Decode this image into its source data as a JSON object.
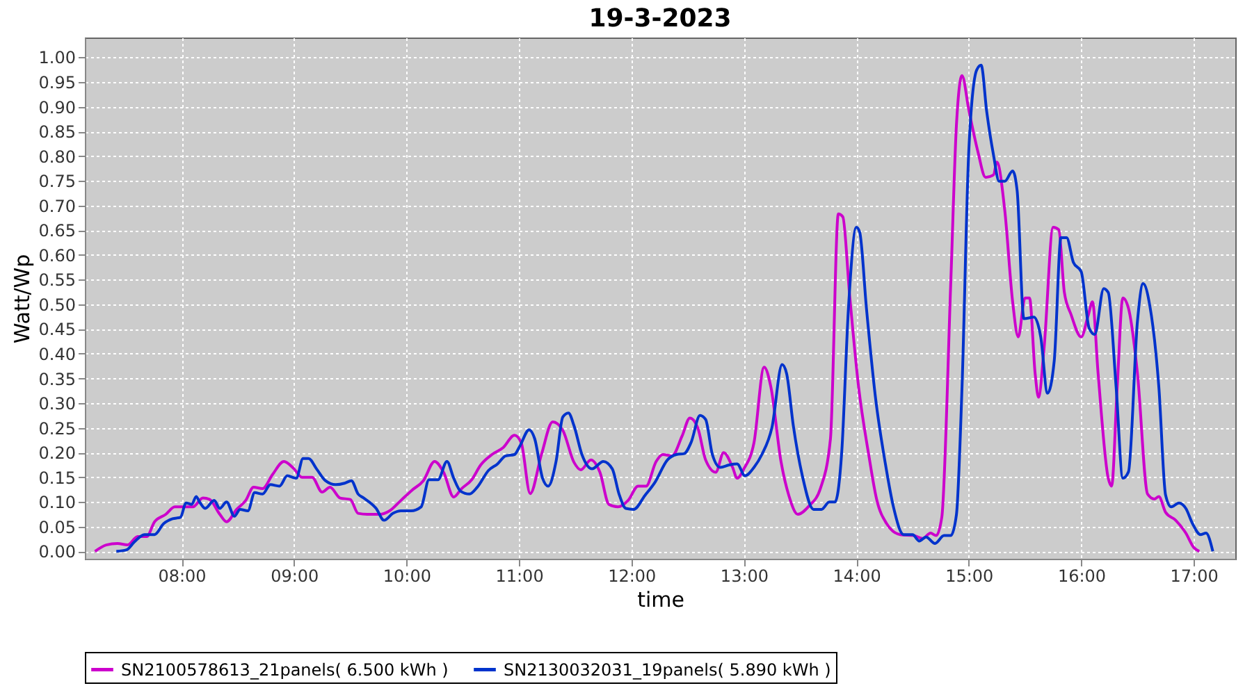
{
  "chart_data": {
    "type": "line",
    "title": "19-3-2023",
    "xlabel": "time",
    "ylabel": "Watt/Wp",
    "xlim": [
      7.14,
      17.37
    ],
    "xticks": [
      {
        "value": 8,
        "label": "08:00"
      },
      {
        "value": 9,
        "label": "09:00"
      },
      {
        "value": 10,
        "label": "10:00"
      },
      {
        "value": 11,
        "label": "11:00"
      },
      {
        "value": 12,
        "label": "12:00"
      },
      {
        "value": 13,
        "label": "13:00"
      },
      {
        "value": 14,
        "label": "14:00"
      },
      {
        "value": 15,
        "label": "15:00"
      },
      {
        "value": 16,
        "label": "16:00"
      },
      {
        "value": 17,
        "label": "17:00"
      }
    ],
    "ylim": [
      -0.015,
      1.04
    ],
    "yticks": [
      {
        "value": 0,
        "label": "0.00"
      },
      {
        "value": 0.05,
        "label": "0.05"
      },
      {
        "value": 0.1,
        "label": "0.10"
      },
      {
        "value": 0.15,
        "label": "0.15"
      },
      {
        "value": 0.2,
        "label": "0.20"
      },
      {
        "value": 0.25,
        "label": "0.25"
      },
      {
        "value": 0.3,
        "label": "0.30"
      },
      {
        "value": 0.35,
        "label": "0.35"
      },
      {
        "value": 0.4,
        "label": "0.40"
      },
      {
        "value": 0.45,
        "label": "0.45"
      },
      {
        "value": 0.5,
        "label": "0.50"
      },
      {
        "value": 0.55,
        "label": "0.55"
      },
      {
        "value": 0.6,
        "label": "0.60"
      },
      {
        "value": 0.65,
        "label": "0.65"
      },
      {
        "value": 0.7,
        "label": "0.70"
      },
      {
        "value": 0.75,
        "label": "0.75"
      },
      {
        "value": 0.8,
        "label": "0.80"
      },
      {
        "value": 0.85,
        "label": "0.85"
      },
      {
        "value": 0.9,
        "label": "0.90"
      },
      {
        "value": 0.95,
        "label": "0.95"
      },
      {
        "value": 1,
        "label": "1.00"
      }
    ],
    "grid": true,
    "legend": "bottom",
    "line_style": "dashed",
    "series": [
      {
        "name": "SN2100578613_21panels( 6.500 kWh )",
        "color": "#cc00cc",
        "line_style": "solid",
        "x": [
          7.23,
          7.33,
          7.43,
          7.52,
          7.61,
          7.69,
          7.76,
          7.86,
          7.94,
          8.04,
          8.1,
          8.19,
          8.25,
          8.34,
          8.4,
          8.49,
          8.57,
          8.64,
          8.72,
          8.81,
          8.91,
          9.0,
          9.07,
          9.16,
          9.25,
          9.32,
          9.41,
          9.5,
          9.57,
          9.65,
          9.76,
          9.85,
          9.95,
          10.05,
          10.15,
          10.25,
          10.33,
          10.42,
          10.49,
          10.58,
          10.66,
          10.76,
          10.86,
          10.96,
          11.02,
          11.1,
          11.2,
          11.3,
          11.39,
          11.49,
          11.55,
          11.64,
          11.72,
          11.8,
          11.88,
          11.97,
          12.06,
          12.13,
          12.22,
          12.28,
          12.36,
          12.45,
          12.52,
          12.59,
          12.66,
          12.75,
          12.82,
          12.9,
          12.94,
          13.0,
          13.09,
          13.18,
          13.24,
          13.33,
          13.4,
          13.48,
          13.58,
          13.68,
          13.77,
          13.84,
          13.88,
          13.94,
          14.02,
          14.11,
          14.18,
          14.27,
          14.39,
          14.51,
          14.59,
          14.66,
          14.71,
          14.76,
          14.84,
          14.89,
          14.94,
          15.0,
          15.08,
          15.15,
          15.22,
          15.25,
          15.32,
          15.39,
          15.44,
          15.5,
          15.54,
          15.59,
          15.62,
          15.67,
          15.75,
          15.8,
          15.85,
          15.91,
          16.0,
          16.06,
          16.1,
          16.15,
          16.24,
          16.27,
          16.32,
          16.37,
          16.42,
          16.5,
          16.59,
          16.65,
          16.69,
          16.75,
          16.84,
          16.93,
          17.0,
          17.05
        ],
        "values": [
          0.0,
          0.013,
          0.016,
          0.013,
          0.03,
          0.03,
          0.06,
          0.075,
          0.09,
          0.09,
          0.09,
          0.108,
          0.105,
          0.075,
          0.06,
          0.085,
          0.103,
          0.13,
          0.127,
          0.156,
          0.182,
          0.167,
          0.15,
          0.15,
          0.12,
          0.13,
          0.108,
          0.105,
          0.077,
          0.075,
          0.075,
          0.082,
          0.103,
          0.124,
          0.143,
          0.182,
          0.16,
          0.11,
          0.127,
          0.145,
          0.175,
          0.196,
          0.21,
          0.235,
          0.22,
          0.117,
          0.196,
          0.262,
          0.245,
          0.18,
          0.165,
          0.185,
          0.16,
          0.095,
          0.09,
          0.103,
          0.132,
          0.132,
          0.182,
          0.196,
          0.193,
          0.233,
          0.27,
          0.25,
          0.185,
          0.16,
          0.2,
          0.17,
          0.148,
          0.167,
          0.22,
          0.373,
          0.333,
          0.182,
          0.113,
          0.075,
          0.092,
          0.127,
          0.228,
          0.683,
          0.677,
          0.52,
          0.333,
          0.196,
          0.106,
          0.056,
          0.034,
          0.032,
          0.026,
          0.037,
          0.032,
          0.069,
          0.545,
          0.862,
          0.963,
          0.894,
          0.81,
          0.757,
          0.762,
          0.788,
          0.69,
          0.505,
          0.434,
          0.513,
          0.513,
          0.36,
          0.312,
          0.413,
          0.656,
          0.651,
          0.524,
          0.479,
          0.434,
          0.476,
          0.505,
          0.36,
          0.148,
          0.132,
          0.333,
          0.513,
          0.492,
          0.36,
          0.116,
          0.106,
          0.111,
          0.079,
          0.063,
          0.037,
          0.008,
          0.0
        ]
      },
      {
        "name": "SN2130032031_19panels( 5.890 kWh )",
        "color": "#0033cc",
        "line_style": "solid",
        "x": [
          7.42,
          7.51,
          7.58,
          7.67,
          7.76,
          7.84,
          7.92,
          7.99,
          8.04,
          8.09,
          8.13,
          8.16,
          8.21,
          8.29,
          8.34,
          8.4,
          8.47,
          8.52,
          8.59,
          8.65,
          8.72,
          8.79,
          8.87,
          8.94,
          9.02,
          9.08,
          9.13,
          9.2,
          9.28,
          9.37,
          9.45,
          9.51,
          9.57,
          9.62,
          9.73,
          9.8,
          9.88,
          9.95,
          10.04,
          10.13,
          10.2,
          10.28,
          10.36,
          10.42,
          10.48,
          10.56,
          10.63,
          10.73,
          10.81,
          10.88,
          10.96,
          11.01,
          11.09,
          11.14,
          11.21,
          11.26,
          11.33,
          11.39,
          11.44,
          11.49,
          11.56,
          11.65,
          11.75,
          11.83,
          11.89,
          11.95,
          12.02,
          12.12,
          12.21,
          12.32,
          12.4,
          12.47,
          12.53,
          12.61,
          12.66,
          12.72,
          12.79,
          12.87,
          12.94,
          13.01,
          13.09,
          13.16,
          13.25,
          13.34,
          13.38,
          13.44,
          13.52,
          13.62,
          13.69,
          13.76,
          13.81,
          13.87,
          13.93,
          14.0,
          14.03,
          14.09,
          14.17,
          14.26,
          14.33,
          14.42,
          14.5,
          14.56,
          14.62,
          14.7,
          14.78,
          14.84,
          14.89,
          14.94,
          15.0,
          15.07,
          15.11,
          15.16,
          15.22,
          15.27,
          15.32,
          15.39,
          15.43,
          15.49,
          15.58,
          15.64,
          15.7,
          15.76,
          15.82,
          15.87,
          15.93,
          16.0,
          16.07,
          16.12,
          16.2,
          16.24,
          16.31,
          16.37,
          16.42,
          16.5,
          16.55,
          16.61,
          16.69,
          16.75,
          16.8,
          16.87,
          16.93,
          16.99,
          17.06,
          17.11,
          17.17
        ],
        "values": [
          0.0,
          0.003,
          0.019,
          0.034,
          0.034,
          0.056,
          0.066,
          0.069,
          0.098,
          0.095,
          0.111,
          0.1,
          0.087,
          0.103,
          0.087,
          0.1,
          0.071,
          0.085,
          0.082,
          0.119,
          0.116,
          0.135,
          0.132,
          0.153,
          0.148,
          0.188,
          0.188,
          0.167,
          0.143,
          0.135,
          0.138,
          0.143,
          0.116,
          0.108,
          0.087,
          0.063,
          0.077,
          0.082,
          0.082,
          0.09,
          0.145,
          0.145,
          0.182,
          0.148,
          0.122,
          0.116,
          0.13,
          0.164,
          0.177,
          0.193,
          0.196,
          0.214,
          0.246,
          0.228,
          0.148,
          0.132,
          0.182,
          0.272,
          0.28,
          0.254,
          0.196,
          0.167,
          0.182,
          0.167,
          0.116,
          0.087,
          0.085,
          0.113,
          0.14,
          0.185,
          0.196,
          0.198,
          0.22,
          0.275,
          0.267,
          0.196,
          0.17,
          0.175,
          0.177,
          0.153,
          0.17,
          0.196,
          0.251,
          0.378,
          0.36,
          0.254,
          0.153,
          0.085,
          0.085,
          0.1,
          0.1,
          0.2,
          0.492,
          0.656,
          0.646,
          0.492,
          0.312,
          0.175,
          0.09,
          0.034,
          0.034,
          0.021,
          0.029,
          0.016,
          0.032,
          0.032,
          0.074,
          0.333,
          0.81,
          0.974,
          0.984,
          0.889,
          0.802,
          0.749,
          0.749,
          0.77,
          0.73,
          0.471,
          0.474,
          0.434,
          0.32,
          0.386,
          0.635,
          0.635,
          0.585,
          0.566,
          0.452,
          0.439,
          0.532,
          0.524,
          0.333,
          0.148,
          0.161,
          0.466,
          0.542,
          0.497,
          0.333,
          0.114,
          0.09,
          0.098,
          0.087,
          0.056,
          0.034,
          0.037,
          0.0
        ]
      }
    ]
  }
}
